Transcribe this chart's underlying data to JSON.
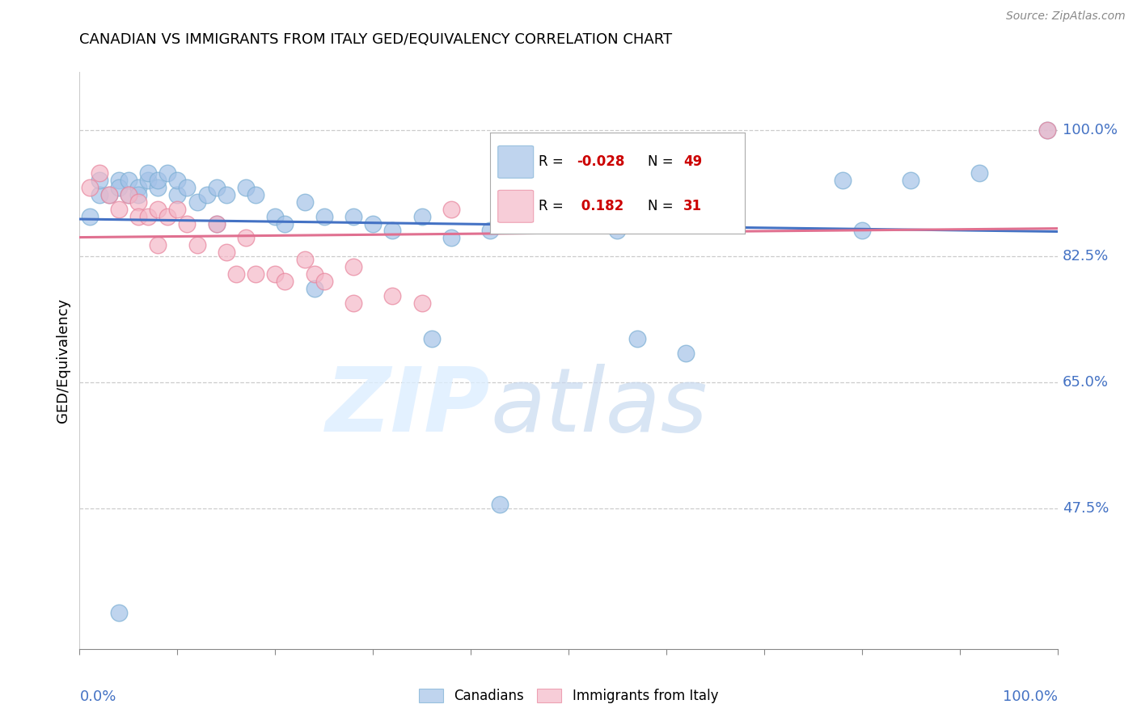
{
  "title": "CANADIAN VS IMMIGRANTS FROM ITALY GED/EQUIVALENCY CORRELATION CHART",
  "source": "Source: ZipAtlas.com",
  "ylabel": "GED/Equivalency",
  "ytick_labels": [
    "100.0%",
    "82.5%",
    "65.0%",
    "47.5%"
  ],
  "ytick_values": [
    1.0,
    0.825,
    0.65,
    0.475
  ],
  "xlim": [
    0.0,
    1.0
  ],
  "ylim": [
    0.28,
    1.08
  ],
  "legend_canadians_R": "-0.028",
  "legend_canadians_N": "49",
  "legend_italy_R": "0.182",
  "legend_italy_N": "31",
  "blue_color": "#a4c2e8",
  "blue_edge": "#7bafd4",
  "pink_color": "#f4b8c8",
  "pink_edge": "#e8849c",
  "line_blue": "#4472c4",
  "line_pink": "#e07090",
  "label_color": "#4472c4",
  "canadians_x": [
    0.01,
    0.02,
    0.02,
    0.03,
    0.04,
    0.04,
    0.05,
    0.05,
    0.06,
    0.06,
    0.07,
    0.07,
    0.08,
    0.08,
    0.09,
    0.1,
    0.1,
    0.11,
    0.12,
    0.13,
    0.14,
    0.15,
    0.17,
    0.18,
    0.2,
    0.21,
    0.23,
    0.25,
    0.28,
    0.3,
    0.32,
    0.35,
    0.38,
    0.43,
    0.5,
    0.55,
    0.62,
    0.64,
    0.78,
    0.85,
    0.92,
    0.36,
    0.42,
    0.57,
    0.24,
    0.14,
    0.8,
    0.99,
    0.04
  ],
  "canadians_y": [
    0.88,
    0.91,
    0.93,
    0.91,
    0.93,
    0.92,
    0.91,
    0.93,
    0.92,
    0.91,
    0.93,
    0.94,
    0.92,
    0.93,
    0.94,
    0.91,
    0.93,
    0.92,
    0.9,
    0.91,
    0.92,
    0.91,
    0.92,
    0.91,
    0.88,
    0.87,
    0.9,
    0.88,
    0.88,
    0.87,
    0.86,
    0.88,
    0.85,
    0.48,
    0.92,
    0.86,
    0.69,
    0.92,
    0.93,
    0.93,
    0.94,
    0.71,
    0.86,
    0.71,
    0.78,
    0.87,
    0.86,
    1.0,
    0.33
  ],
  "italy_x": [
    0.01,
    0.02,
    0.03,
    0.04,
    0.05,
    0.06,
    0.06,
    0.07,
    0.08,
    0.09,
    0.1,
    0.11,
    0.12,
    0.14,
    0.15,
    0.16,
    0.17,
    0.18,
    0.2,
    0.21,
    0.23,
    0.24,
    0.25,
    0.28,
    0.28,
    0.32,
    0.35,
    0.38,
    0.5,
    0.99,
    0.08
  ],
  "italy_y": [
    0.92,
    0.94,
    0.91,
    0.89,
    0.91,
    0.9,
    0.88,
    0.88,
    0.89,
    0.88,
    0.89,
    0.87,
    0.84,
    0.87,
    0.83,
    0.8,
    0.85,
    0.8,
    0.8,
    0.79,
    0.82,
    0.8,
    0.79,
    0.76,
    0.81,
    0.77,
    0.76,
    0.89,
    0.87,
    1.0,
    0.84
  ]
}
